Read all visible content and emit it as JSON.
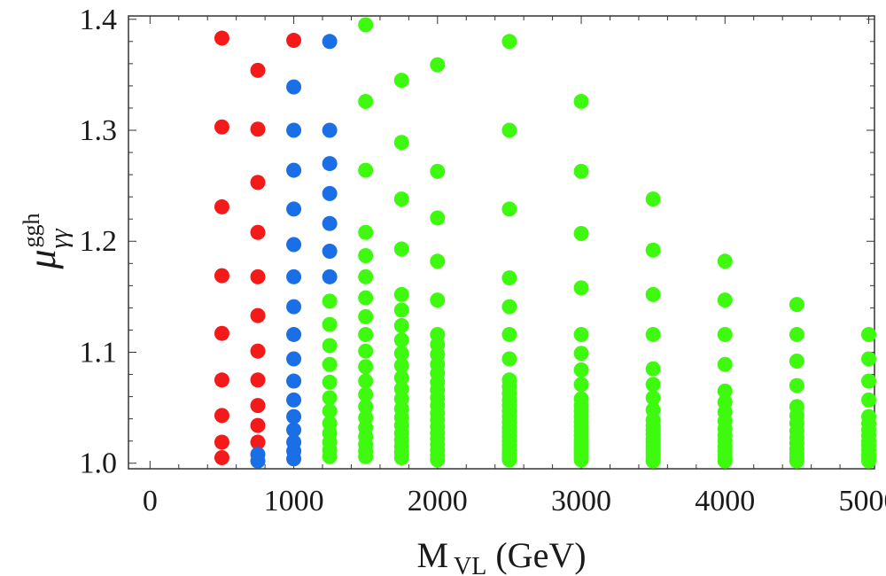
{
  "chart_data": {
    "type": "scatter",
    "title": "",
    "xlabel": {
      "main": "M",
      "subscript": "VL",
      "unit": "(GeV)"
    },
    "ylabel": {
      "symbol": "μ",
      "superscript": "ggh",
      "subscript": "γγ"
    },
    "xlim": [
      -150,
      5040
    ],
    "ylim": [
      0.995,
      1.403
    ],
    "xticks": [
      0,
      1000,
      2000,
      3000,
      4000,
      5000
    ],
    "xtick_labels": [
      "0",
      "1000",
      "2000",
      "3000",
      "4000",
      "5000"
    ],
    "yticks": [
      1.0,
      1.1,
      1.2,
      1.3,
      1.4
    ],
    "ytick_labels": [
      "1.0",
      "1.1",
      "1.2",
      "1.3",
      "1.4"
    ],
    "grid": false,
    "legend": null,
    "series": [
      {
        "name": "red",
        "color": "#f51a1a",
        "points": [
          [
            500,
            1.383
          ],
          [
            500,
            1.303
          ],
          [
            500,
            1.231
          ],
          [
            500,
            1.169
          ],
          [
            500,
            1.117
          ],
          [
            500,
            1.075
          ],
          [
            500,
            1.043
          ],
          [
            500,
            1.019
          ],
          [
            500,
            1.005
          ],
          [
            750,
            1.354
          ],
          [
            750,
            1.301
          ],
          [
            750,
            1.253
          ],
          [
            750,
            1.208
          ],
          [
            750,
            1.168
          ],
          [
            750,
            1.133
          ],
          [
            750,
            1.101
          ],
          [
            750,
            1.075
          ],
          [
            750,
            1.052
          ],
          [
            750,
            1.034
          ],
          [
            750,
            1.019
          ],
          [
            1000,
            1.381
          ]
        ]
      },
      {
        "name": "blue",
        "color": "#1a6fe6",
        "points": [
          [
            750,
            1.008
          ],
          [
            750,
            1.002
          ],
          [
            1000,
            1.339
          ],
          [
            1000,
            1.3
          ],
          [
            1000,
            1.264
          ],
          [
            1000,
            1.229
          ],
          [
            1000,
            1.197
          ],
          [
            1000,
            1.168
          ],
          [
            1000,
            1.141
          ],
          [
            1000,
            1.116
          ],
          [
            1000,
            1.094
          ],
          [
            1000,
            1.074
          ],
          [
            1000,
            1.057
          ],
          [
            1000,
            1.042
          ],
          [
            1000,
            1.03
          ],
          [
            1000,
            1.019
          ],
          [
            1000,
            1.011
          ],
          [
            1000,
            1.004
          ],
          [
            1250,
            1.38
          ],
          [
            1250,
            1.3
          ],
          [
            1250,
            1.27
          ],
          [
            1250,
            1.243
          ],
          [
            1250,
            1.216
          ],
          [
            1250,
            1.191
          ],
          [
            1250,
            1.168
          ]
        ]
      },
      {
        "name": "green",
        "color": "#3dfa0f",
        "points": [
          [
            1250,
            1.146
          ],
          [
            1250,
            1.125
          ],
          [
            1250,
            1.106
          ],
          [
            1250,
            1.089
          ],
          [
            1250,
            1.073
          ],
          [
            1250,
            1.059
          ],
          [
            1250,
            1.047
          ],
          [
            1250,
            1.036
          ],
          [
            1250,
            1.027
          ],
          [
            1250,
            1.019
          ],
          [
            1250,
            1.012
          ],
          [
            1250,
            1.006
          ],
          [
            1500,
            1.395
          ],
          [
            1500,
            1.326
          ],
          [
            1500,
            1.264
          ],
          [
            1500,
            1.208
          ],
          [
            1500,
            1.187
          ],
          [
            1500,
            1.168
          ],
          [
            1500,
            1.149
          ],
          [
            1500,
            1.132
          ],
          [
            1500,
            1.116
          ],
          [
            1500,
            1.101
          ],
          [
            1500,
            1.087
          ],
          [
            1500,
            1.074
          ],
          [
            1500,
            1.062
          ],
          [
            1500,
            1.051
          ],
          [
            1500,
            1.041
          ],
          [
            1500,
            1.032
          ],
          [
            1500,
            1.024
          ],
          [
            1500,
            1.017
          ],
          [
            1500,
            1.011
          ],
          [
            1500,
            1.006
          ],
          [
            1750,
            1.345
          ],
          [
            1750,
            1.289
          ],
          [
            1750,
            1.238
          ],
          [
            1750,
            1.193
          ],
          [
            1750,
            1.152
          ],
          [
            1750,
            1.138
          ],
          [
            1750,
            1.124
          ],
          [
            1750,
            1.111
          ],
          [
            1750,
            1.099
          ],
          [
            1750,
            1.088
          ],
          [
            1750,
            1.077
          ],
          [
            1750,
            1.067
          ],
          [
            1750,
            1.058
          ],
          [
            1750,
            1.049
          ],
          [
            1750,
            1.041
          ],
          [
            1750,
            1.034
          ],
          [
            1750,
            1.027
          ],
          [
            1750,
            1.021
          ],
          [
            1750,
            1.015
          ],
          [
            1750,
            1.01
          ],
          [
            1750,
            1.005
          ],
          [
            2000,
            1.359
          ],
          [
            2000,
            1.263
          ],
          [
            2000,
            1.221
          ],
          [
            2000,
            1.182
          ],
          [
            2000,
            1.147
          ],
          [
            2000,
            1.116
          ],
          [
            2000,
            1.107
          ],
          [
            2000,
            1.098
          ],
          [
            2000,
            1.089
          ],
          [
            2000,
            1.081
          ],
          [
            2000,
            1.073
          ],
          [
            2000,
            1.066
          ],
          [
            2000,
            1.059
          ],
          [
            2000,
            1.052
          ],
          [
            2000,
            1.045
          ],
          [
            2000,
            1.039
          ],
          [
            2000,
            1.033
          ],
          [
            2000,
            1.027
          ],
          [
            2000,
            1.022
          ],
          [
            2000,
            1.017
          ],
          [
            2000,
            1.012
          ],
          [
            2000,
            1.007
          ],
          [
            2000,
            1.003
          ],
          [
            2500,
            1.38
          ],
          [
            2500,
            1.3
          ],
          [
            2500,
            1.229
          ],
          [
            2500,
            1.167
          ],
          [
            2500,
            1.141
          ],
          [
            2500,
            1.116
          ],
          [
            2500,
            1.094
          ],
          [
            2500,
            1.075
          ],
          [
            2500,
            1.069
          ],
          [
            2500,
            1.063
          ],
          [
            2500,
            1.057
          ],
          [
            2500,
            1.052
          ],
          [
            2500,
            1.047
          ],
          [
            2500,
            1.042
          ],
          [
            2500,
            1.037
          ],
          [
            2500,
            1.032
          ],
          [
            2500,
            1.028
          ],
          [
            2500,
            1.024
          ],
          [
            2500,
            1.02
          ],
          [
            2500,
            1.016
          ],
          [
            2500,
            1.012
          ],
          [
            2500,
            1.009
          ],
          [
            2500,
            1.006
          ],
          [
            2500,
            1.003
          ],
          [
            3000,
            1.326
          ],
          [
            3000,
            1.263
          ],
          [
            3000,
            1.207
          ],
          [
            3000,
            1.158
          ],
          [
            3000,
            1.116
          ],
          [
            3000,
            1.099
          ],
          [
            3000,
            1.084
          ],
          [
            3000,
            1.071
          ],
          [
            3000,
            1.058
          ],
          [
            3000,
            1.052
          ],
          [
            3000,
            1.047
          ],
          [
            3000,
            1.042
          ],
          [
            3000,
            1.037
          ],
          [
            3000,
            1.033
          ],
          [
            3000,
            1.029
          ],
          [
            3000,
            1.025
          ],
          [
            3000,
            1.021
          ],
          [
            3000,
            1.018
          ],
          [
            3000,
            1.015
          ],
          [
            3000,
            1.012
          ],
          [
            3000,
            1.009
          ],
          [
            3000,
            1.006
          ],
          [
            3000,
            1.003
          ],
          [
            3500,
            1.238
          ],
          [
            3500,
            1.192
          ],
          [
            3500,
            1.152
          ],
          [
            3500,
            1.116
          ],
          [
            3500,
            1.085
          ],
          [
            3500,
            1.071
          ],
          [
            3500,
            1.059
          ],
          [
            3500,
            1.048
          ],
          [
            3500,
            1.039
          ],
          [
            3500,
            1.034
          ],
          [
            3500,
            1.03
          ],
          [
            3500,
            1.026
          ],
          [
            3500,
            1.022
          ],
          [
            3500,
            1.019
          ],
          [
            3500,
            1.016
          ],
          [
            3500,
            1.013
          ],
          [
            3500,
            1.01
          ],
          [
            3500,
            1.007
          ],
          [
            3500,
            1.004
          ],
          [
            3500,
            1.002
          ],
          [
            4000,
            1.182
          ],
          [
            4000,
            1.147
          ],
          [
            4000,
            1.116
          ],
          [
            4000,
            1.089
          ],
          [
            4000,
            1.065
          ],
          [
            4000,
            1.055
          ],
          [
            4000,
            1.046
          ],
          [
            4000,
            1.038
          ],
          [
            4000,
            1.031
          ],
          [
            4000,
            1.025
          ],
          [
            4000,
            1.02
          ],
          [
            4000,
            1.015
          ],
          [
            4000,
            1.011
          ],
          [
            4000,
            1.007
          ],
          [
            4000,
            1.004
          ],
          [
            4000,
            1.002
          ],
          [
            4500,
            1.143
          ],
          [
            4500,
            1.116
          ],
          [
            4500,
            1.092
          ],
          [
            4500,
            1.07
          ],
          [
            4500,
            1.051
          ],
          [
            4500,
            1.043
          ],
          [
            4500,
            1.036
          ],
          [
            4500,
            1.029
          ],
          [
            4500,
            1.023
          ],
          [
            4500,
            1.018
          ],
          [
            4500,
            1.013
          ],
          [
            4500,
            1.009
          ],
          [
            4500,
            1.005
          ],
          [
            4500,
            1.002
          ],
          [
            5000,
            1.116
          ],
          [
            5000,
            1.094
          ],
          [
            5000,
            1.074
          ],
          [
            5000,
            1.057
          ],
          [
            5000,
            1.042
          ],
          [
            5000,
            1.036
          ],
          [
            5000,
            1.03
          ],
          [
            5000,
            1.025
          ],
          [
            5000,
            1.02
          ],
          [
            5000,
            1.016
          ],
          [
            5000,
            1.012
          ],
          [
            5000,
            1.008
          ],
          [
            5000,
            1.005
          ],
          [
            5000,
            1.002
          ]
        ]
      }
    ]
  }
}
